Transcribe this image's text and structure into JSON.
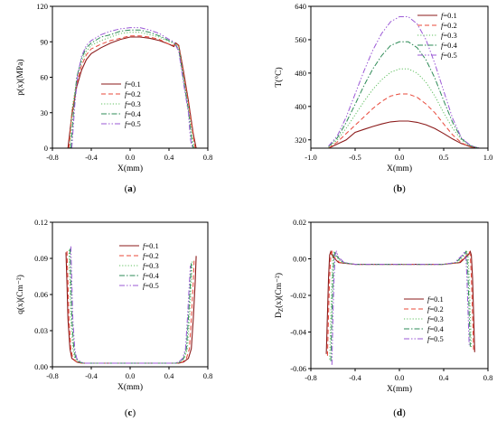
{
  "colors": {
    "f01": "#8B1A1A",
    "f02": "#E8483A",
    "f03": "#60C060",
    "f04": "#2E8B57",
    "f05": "#9B59D6",
    "axis": "#000000",
    "background": "#ffffff"
  },
  "legend_prefix": "f",
  "chart_data": [
    {
      "type": "line",
      "panel_label": "(a)",
      "xlabel": "X(mm)",
      "ylabel": "p(x)(MPa)",
      "xlim": [
        -0.8,
        0.8
      ],
      "ylim": [
        0,
        120
      ],
      "xticks": [
        "-0.8",
        "-0.4",
        "0.0",
        "0.4",
        "0.8"
      ],
      "yticks": [
        "0",
        "30",
        "60",
        "90",
        "120"
      ],
      "xtick_values": [
        -0.8,
        -0.4,
        0.0,
        0.4,
        0.8
      ],
      "ytick_values": [
        0,
        30,
        60,
        90,
        120
      ],
      "legend_position": "center",
      "series": [
        {
          "name": "=0.1",
          "style": "solid",
          "x": [
            -0.64,
            -0.6,
            -0.55,
            -0.5,
            -0.45,
            -0.4,
            -0.3,
            -0.2,
            -0.1,
            0.0,
            0.1,
            0.2,
            0.3,
            0.4,
            0.45,
            0.47,
            0.5,
            0.55,
            0.6,
            0.65,
            0.68
          ],
          "y": [
            0,
            28,
            52,
            66,
            75,
            80,
            85,
            89,
            92,
            94,
            94,
            93,
            91,
            88,
            86,
            89,
            87,
            65,
            40,
            12,
            0
          ]
        },
        {
          "name": "=0.2",
          "style": "dashed",
          "x": [
            -0.63,
            -0.6,
            -0.55,
            -0.5,
            -0.45,
            -0.4,
            -0.3,
            -0.2,
            -0.1,
            0.0,
            0.1,
            0.2,
            0.3,
            0.4,
            0.45,
            0.48,
            0.5,
            0.55,
            0.6,
            0.65,
            0.67
          ],
          "y": [
            0,
            30,
            55,
            70,
            79,
            84,
            88,
            91,
            93,
            95,
            95,
            94,
            92,
            88,
            87,
            89,
            86,
            63,
            38,
            10,
            0
          ]
        },
        {
          "name": "=0.3",
          "style": "dotted",
          "x": [
            -0.62,
            -0.6,
            -0.55,
            -0.5,
            -0.45,
            -0.4,
            -0.3,
            -0.2,
            -0.1,
            0.0,
            0.1,
            0.2,
            0.3,
            0.4,
            0.45,
            0.5,
            0.55,
            0.6,
            0.64,
            0.66
          ],
          "y": [
            0,
            32,
            58,
            73,
            82,
            87,
            91,
            94,
            97,
            98,
            98,
            96,
            94,
            90,
            89,
            86,
            60,
            35,
            10,
            0
          ]
        },
        {
          "name": "=0.4",
          "style": "dashdot",
          "x": [
            -0.61,
            -0.58,
            -0.55,
            -0.5,
            -0.45,
            -0.4,
            -0.3,
            -0.2,
            -0.1,
            0.0,
            0.1,
            0.2,
            0.3,
            0.4,
            0.45,
            0.5,
            0.55,
            0.6,
            0.63,
            0.65
          ],
          "y": [
            0,
            34,
            60,
            76,
            85,
            89,
            94,
            96,
            99,
            100,
            100,
            98,
            95,
            91,
            89,
            84,
            58,
            32,
            10,
            0
          ]
        },
        {
          "name": "=0.5",
          "style": "dashdotdot",
          "x": [
            -0.6,
            -0.57,
            -0.54,
            -0.5,
            -0.45,
            -0.4,
            -0.3,
            -0.2,
            -0.1,
            0.0,
            0.1,
            0.2,
            0.3,
            0.4,
            0.45,
            0.5,
            0.55,
            0.6,
            0.62,
            0.64
          ],
          "y": [
            0,
            36,
            62,
            78,
            87,
            91,
            96,
            99,
            101,
            102,
            102,
            100,
            97,
            92,
            90,
            82,
            55,
            30,
            8,
            0
          ]
        }
      ]
    },
    {
      "type": "line",
      "panel_label": "(b)",
      "xlabel": "X(mm)",
      "ylabel": "T(°C)",
      "xlim": [
        -1.0,
        1.0
      ],
      "ylim": [
        300,
        640
      ],
      "xticks": [
        "-1.0",
        "-0.5",
        "0.0",
        "0.5",
        "1.0"
      ],
      "yticks": [
        "320",
        "400",
        "480",
        "560",
        "640"
      ],
      "xtick_values": [
        -1.0,
        -0.5,
        0.0,
        0.5,
        1.0
      ],
      "ytick_values": [
        320,
        400,
        480,
        560,
        640
      ],
      "legend_position": "top-right",
      "series": [
        {
          "name": "=0.1",
          "style": "solid",
          "x": [
            -0.8,
            -0.7,
            -0.6,
            -0.5,
            -0.4,
            -0.3,
            -0.2,
            -0.1,
            0.0,
            0.1,
            0.2,
            0.3,
            0.4,
            0.5,
            0.6,
            0.7,
            0.8,
            0.9
          ],
          "y": [
            300,
            310,
            320,
            338,
            345,
            352,
            358,
            363,
            365,
            365,
            362,
            356,
            347,
            335,
            322,
            311,
            304,
            300
          ]
        },
        {
          "name": "=0.2",
          "style": "dashed",
          "x": [
            -0.8,
            -0.7,
            -0.6,
            -0.5,
            -0.4,
            -0.3,
            -0.2,
            -0.1,
            0.0,
            0.1,
            0.2,
            0.3,
            0.4,
            0.5,
            0.6,
            0.7,
            0.8,
            0.9
          ],
          "y": [
            300,
            315,
            335,
            355,
            375,
            395,
            412,
            425,
            430,
            430,
            422,
            406,
            385,
            358,
            332,
            313,
            303,
            300
          ]
        },
        {
          "name": "=0.3",
          "style": "dotted",
          "x": [
            -0.8,
            -0.7,
            -0.6,
            -0.5,
            -0.4,
            -0.3,
            -0.2,
            -0.1,
            0.0,
            0.1,
            0.2,
            0.3,
            0.4,
            0.5,
            0.6,
            0.7,
            0.8,
            0.9
          ],
          "y": [
            302,
            320,
            348,
            380,
            412,
            441,
            464,
            482,
            490,
            490,
            480,
            458,
            425,
            385,
            348,
            320,
            305,
            300
          ]
        },
        {
          "name": "=0.4",
          "style": "dashdot",
          "x": [
            -0.8,
            -0.7,
            -0.6,
            -0.5,
            -0.4,
            -0.3,
            -0.2,
            -0.1,
            0.0,
            0.1,
            0.2,
            0.3,
            0.4,
            0.5,
            0.6,
            0.7,
            0.8,
            0.9
          ],
          "y": [
            304,
            325,
            362,
            405,
            450,
            490,
            522,
            546,
            555,
            555,
            541,
            512,
            468,
            414,
            362,
            323,
            306,
            300
          ]
        },
        {
          "name": "=0.5",
          "style": "dashdotdot",
          "x": [
            -0.8,
            -0.7,
            -0.6,
            -0.5,
            -0.4,
            -0.3,
            -0.2,
            -0.1,
            0.0,
            0.1,
            0.2,
            0.3,
            0.4,
            0.5,
            0.6,
            0.7,
            0.8,
            0.9
          ],
          "y": [
            305,
            330,
            375,
            430,
            485,
            535,
            575,
            603,
            615,
            615,
            598,
            560,
            503,
            437,
            372,
            325,
            307,
            300
          ]
        }
      ]
    },
    {
      "type": "line",
      "panel_label": "(c)",
      "xlabel": "X(mm)",
      "ylabel": "q(x)(Cm⁻²)",
      "xlim": [
        -0.8,
        0.8
      ],
      "ylim": [
        0.0,
        0.12
      ],
      "xticks": [
        "-0.8",
        "-0.4",
        "0.0",
        "0.4",
        "0.8"
      ],
      "yticks": [
        "0.00",
        "0.03",
        "0.06",
        "0.09",
        "0.12"
      ],
      "xtick_values": [
        -0.8,
        -0.4,
        0.0,
        0.4,
        0.8
      ],
      "ytick_values": [
        0.0,
        0.03,
        0.06,
        0.09,
        0.12
      ],
      "legend_position": "top-right",
      "series": [
        {
          "name": "=0.1",
          "style": "solid",
          "x": [
            -0.66,
            -0.65,
            -0.64,
            -0.62,
            -0.6,
            -0.55,
            -0.5,
            -0.4,
            0.0,
            0.4,
            0.5,
            0.55,
            0.6,
            0.63,
            0.65,
            0.67,
            0.68
          ],
          "y": [
            0.095,
            0.07,
            0.04,
            0.015,
            0.007,
            0.004,
            0.003,
            0.003,
            0.003,
            0.003,
            0.003,
            0.004,
            0.007,
            0.015,
            0.04,
            0.07,
            0.092
          ]
        },
        {
          "name": "=0.2",
          "style": "dashed",
          "x": [
            -0.65,
            -0.64,
            -0.63,
            -0.61,
            -0.59,
            -0.55,
            -0.5,
            -0.4,
            0.0,
            0.4,
            0.5,
            0.54,
            0.58,
            0.61,
            0.63,
            0.65,
            0.66
          ],
          "y": [
            0.096,
            0.07,
            0.04,
            0.015,
            0.007,
            0.004,
            0.003,
            0.003,
            0.003,
            0.003,
            0.003,
            0.004,
            0.007,
            0.015,
            0.04,
            0.07,
            0.09
          ]
        },
        {
          "name": "=0.3",
          "style": "dotted",
          "x": [
            -0.63,
            -0.62,
            -0.61,
            -0.59,
            -0.57,
            -0.53,
            -0.5,
            -0.4,
            0.0,
            0.4,
            0.48,
            0.52,
            0.56,
            0.59,
            0.61,
            0.63,
            0.64
          ],
          "y": [
            0.097,
            0.07,
            0.04,
            0.015,
            0.007,
            0.004,
            0.003,
            0.003,
            0.003,
            0.003,
            0.003,
            0.004,
            0.007,
            0.015,
            0.04,
            0.07,
            0.088
          ]
        },
        {
          "name": "=0.4",
          "style": "dashdot",
          "x": [
            -0.62,
            -0.61,
            -0.6,
            -0.58,
            -0.56,
            -0.52,
            -0.48,
            -0.4,
            0.0,
            0.4,
            0.47,
            0.51,
            0.55,
            0.58,
            0.6,
            0.62,
            0.63
          ],
          "y": [
            0.098,
            0.07,
            0.04,
            0.015,
            0.007,
            0.004,
            0.003,
            0.003,
            0.003,
            0.003,
            0.003,
            0.004,
            0.007,
            0.015,
            0.04,
            0.07,
            0.086
          ]
        },
        {
          "name": "=0.5",
          "style": "dashdotdot",
          "x": [
            -0.61,
            -0.6,
            -0.59,
            -0.57,
            -0.55,
            -0.51,
            -0.47,
            -0.4,
            0.0,
            0.4,
            0.46,
            0.5,
            0.54,
            0.57,
            0.59,
            0.61,
            0.62
          ],
          "y": [
            0.1,
            0.07,
            0.04,
            0.015,
            0.007,
            0.004,
            0.003,
            0.003,
            0.003,
            0.003,
            0.003,
            0.004,
            0.007,
            0.015,
            0.04,
            0.07,
            0.084
          ]
        }
      ]
    },
    {
      "type": "line",
      "panel_label": "(d)",
      "xlabel": "X(mm)",
      "ylabel": "D_Z(x)(Cm⁻²)",
      "ylabel_main": "D",
      "ylabel_sub": "Z",
      "ylabel_rest": "(x)(Cm⁻²)",
      "xlim": [
        -0.8,
        0.8
      ],
      "ylim": [
        -0.06,
        0.02
      ],
      "xticks": [
        "-0.8",
        "-0.4",
        "0.0",
        "0.4",
        "0.8"
      ],
      "yticks": [
        "-0.06",
        "-0.04",
        "-0.02",
        "0.00",
        "0.02"
      ],
      "xtick_values": [
        -0.8,
        -0.4,
        0.0,
        0.4,
        0.8
      ],
      "ytick_values": [
        -0.06,
        -0.04,
        -0.02,
        0.0,
        0.02
      ],
      "legend_position": "bottom-right",
      "series": [
        {
          "name": "=0.1",
          "style": "solid",
          "x": [
            -0.66,
            -0.65,
            -0.64,
            -0.63,
            -0.62,
            -0.6,
            -0.55,
            -0.4,
            0.0,
            0.4,
            0.55,
            0.6,
            0.62,
            0.64,
            0.65,
            0.66,
            0.67,
            0.68
          ],
          "y": [
            -0.052,
            -0.03,
            -0.01,
            0.002,
            0.004,
            0.001,
            -0.002,
            -0.003,
            -0.003,
            -0.003,
            -0.002,
            0.001,
            0.002,
            0.004,
            0.002,
            -0.01,
            -0.03,
            -0.051
          ]
        },
        {
          "name": "=0.2",
          "style": "dashed",
          "x": [
            -0.65,
            -0.64,
            -0.63,
            -0.62,
            -0.61,
            -0.59,
            -0.54,
            -0.4,
            0.0,
            0.4,
            0.54,
            0.59,
            0.61,
            0.63,
            0.64,
            0.65,
            0.66,
            0.67
          ],
          "y": [
            -0.053,
            -0.03,
            -0.01,
            0.002,
            0.004,
            0.001,
            -0.002,
            -0.003,
            -0.003,
            -0.003,
            -0.002,
            0.001,
            0.002,
            0.004,
            0.002,
            -0.01,
            -0.03,
            -0.05
          ]
        },
        {
          "name": "=0.3",
          "style": "dotted",
          "x": [
            -0.63,
            -0.62,
            -0.61,
            -0.6,
            -0.59,
            -0.57,
            -0.52,
            -0.4,
            0.0,
            0.4,
            0.52,
            0.57,
            0.59,
            0.61,
            0.62,
            0.63,
            0.64,
            0.65
          ],
          "y": [
            -0.055,
            -0.03,
            -0.01,
            0.002,
            0.004,
            0.001,
            -0.002,
            -0.003,
            -0.003,
            -0.003,
            -0.002,
            0.001,
            0.002,
            0.004,
            0.002,
            -0.01,
            -0.03,
            -0.049
          ]
        },
        {
          "name": "=0.4",
          "style": "dashdot",
          "x": [
            -0.62,
            -0.61,
            -0.6,
            -0.59,
            -0.58,
            -0.56,
            -0.51,
            -0.4,
            0.0,
            0.4,
            0.51,
            0.56,
            0.58,
            0.6,
            0.61,
            0.62,
            0.63,
            0.64
          ],
          "y": [
            -0.056,
            -0.03,
            -0.01,
            0.002,
            0.004,
            0.001,
            -0.002,
            -0.003,
            -0.003,
            -0.003,
            -0.002,
            0.001,
            0.002,
            0.004,
            0.002,
            -0.01,
            -0.03,
            -0.048
          ]
        },
        {
          "name": "=0.5",
          "style": "dashdotdot",
          "x": [
            -0.61,
            -0.6,
            -0.59,
            -0.58,
            -0.57,
            -0.55,
            -0.5,
            -0.4,
            0.0,
            0.4,
            0.5,
            0.55,
            0.57,
            0.59,
            0.6,
            0.61,
            0.62,
            0.63
          ],
          "y": [
            -0.058,
            -0.03,
            -0.01,
            0.002,
            0.004,
            0.001,
            -0.002,
            -0.003,
            -0.003,
            -0.003,
            -0.002,
            0.001,
            0.002,
            0.004,
            0.002,
            -0.01,
            -0.03,
            -0.047
          ]
        }
      ]
    }
  ]
}
